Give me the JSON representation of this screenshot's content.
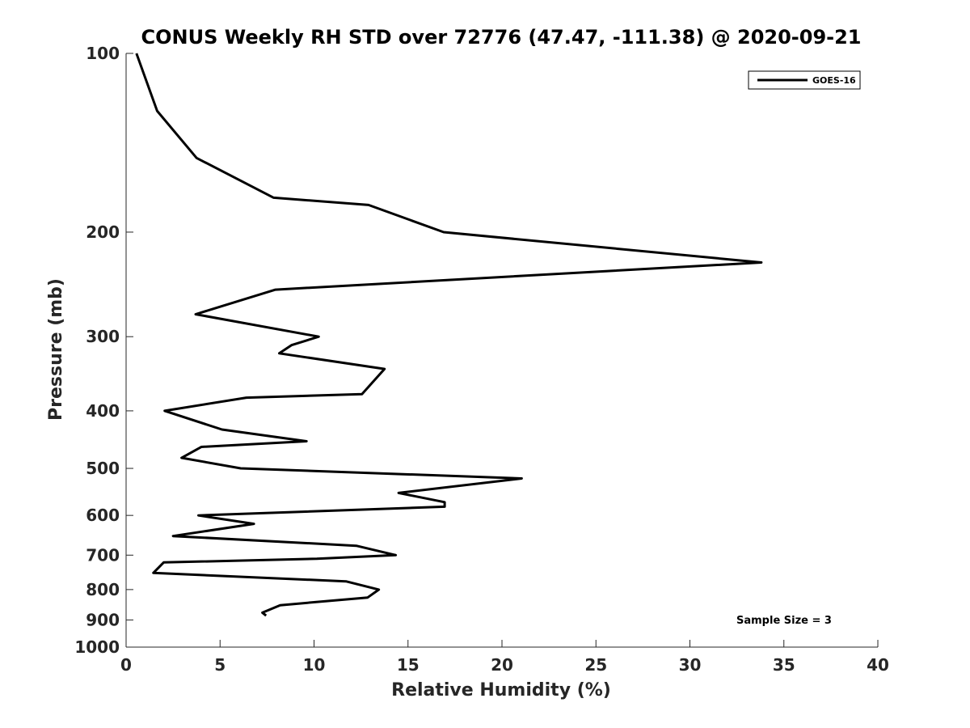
{
  "chart_data": {
    "type": "line",
    "title": "CONUS Weekly RH STD over 72776 (47.47, -111.38) @ 2020-09-21",
    "xlabel": "Relative Humidity (%)",
    "ylabel": "Pressure (mb)",
    "xlim": [
      0,
      40
    ],
    "ylim": [
      100,
      1000
    ],
    "y_scale": "log",
    "y_direction": "reverse",
    "x_ticks": [
      0,
      5,
      10,
      15,
      20,
      25,
      30,
      35,
      40
    ],
    "y_ticks": [
      100,
      200,
      300,
      400,
      500,
      600,
      700,
      800,
      900,
      1000
    ],
    "legend_position": "top-right",
    "series": [
      {
        "name": "GOES-16",
        "color": "#000000",
        "points": [
          [
            0.55,
            100
          ],
          [
            1.65,
            125
          ],
          [
            3.75,
            150
          ],
          [
            7.85,
            175
          ],
          [
            12.9,
            180
          ],
          [
            16.9,
            200
          ],
          [
            33.8,
            225
          ],
          [
            7.95,
            250
          ],
          [
            3.7,
            275
          ],
          [
            10.25,
            300
          ],
          [
            8.8,
            310
          ],
          [
            8.15,
            320
          ],
          [
            13.75,
            340
          ],
          [
            12.55,
            375
          ],
          [
            6.4,
            380
          ],
          [
            2.05,
            400
          ],
          [
            5.1,
            430
          ],
          [
            9.6,
            450
          ],
          [
            4.0,
            460
          ],
          [
            2.95,
            480
          ],
          [
            6.1,
            500
          ],
          [
            21.05,
            520
          ],
          [
            14.5,
            550
          ],
          [
            16.95,
            570
          ],
          [
            16.95,
            580
          ],
          [
            3.85,
            600
          ],
          [
            6.8,
            620
          ],
          [
            2.5,
            650
          ],
          [
            12.25,
            675
          ],
          [
            14.35,
            700
          ],
          [
            10.15,
            710
          ],
          [
            2.0,
            720
          ],
          [
            1.45,
            750
          ],
          [
            11.7,
            775
          ],
          [
            13.45,
            800
          ],
          [
            12.85,
            825
          ],
          [
            8.2,
            850
          ],
          [
            7.25,
            875
          ],
          [
            7.45,
            885
          ]
        ]
      }
    ],
    "annotations": [
      "Sample Size = 3"
    ]
  }
}
